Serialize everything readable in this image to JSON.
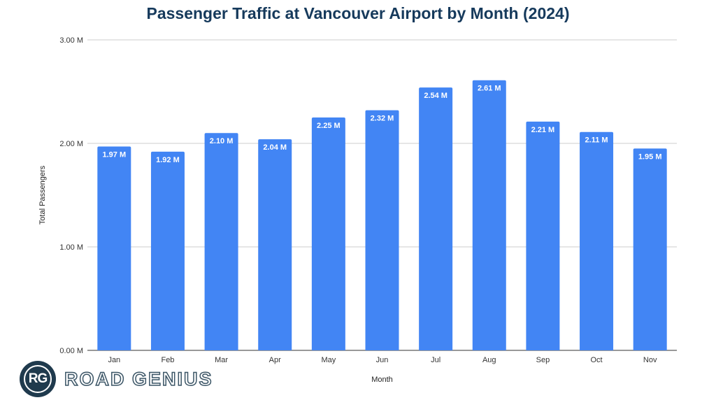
{
  "chart_data": {
    "type": "bar",
    "title": "Passenger Traffic at Vancouver Airport by Month (2024)",
    "xlabel": "Month",
    "ylabel": "Total Passengers",
    "ylim": [
      0,
      3
    ],
    "yticks": [
      0,
      1,
      2,
      3
    ],
    "ytick_labels": [
      "0.00 M",
      "1.00 M",
      "2.00 M",
      "3.00 M"
    ],
    "categories": [
      "Jan",
      "Feb",
      "Mar",
      "Apr",
      "May",
      "Jun",
      "Jul",
      "Aug",
      "Sep",
      "Oct",
      "Nov"
    ],
    "values": [
      1.97,
      1.92,
      2.1,
      2.04,
      2.25,
      2.32,
      2.54,
      2.61,
      2.21,
      2.11,
      1.95
    ],
    "data_labels": [
      "1.97 M",
      "1.92 M",
      "2.10 M",
      "2.04 M",
      "2.25 M",
      "2.32 M",
      "2.54 M",
      "2.61 M",
      "2.21 M",
      "2.11 M",
      "1.95 M"
    ],
    "grid": true,
    "legend": "none",
    "bar_color": "#4285f4"
  },
  "logo": {
    "initials": "RG",
    "name": "ROAD GENIUS"
  }
}
